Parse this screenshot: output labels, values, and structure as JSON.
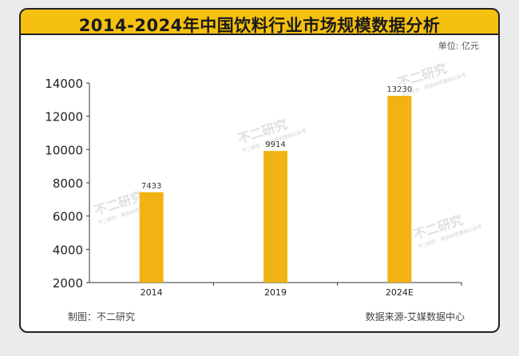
{
  "title": "2014-2024年中国饮料行业市场规模数据分析",
  "unit_label": "单位: 亿元",
  "footer": {
    "maker": "制图：不二研究",
    "source": "数据来源-艾媒数据中心"
  },
  "watermark": {
    "text": "不二研究",
    "subtext": "不二研究 · 财经研究微信公众号"
  },
  "colors": {
    "bar": "#f0b313",
    "title_bg": "#f5c010",
    "page_bg": "#ebebeb",
    "axis": "#333333"
  },
  "chart_data": {
    "type": "bar",
    "categories": [
      "2014",
      "2019",
      "2024E"
    ],
    "values": [
      7433,
      9914,
      13230
    ],
    "data_labels": [
      "7433",
      "9914",
      "13230"
    ],
    "ylim": [
      2000,
      14000
    ],
    "yticks": [
      2000,
      4000,
      6000,
      8000,
      10000,
      12000,
      14000
    ],
    "grid": false,
    "xlabel": "",
    "ylabel": ""
  }
}
